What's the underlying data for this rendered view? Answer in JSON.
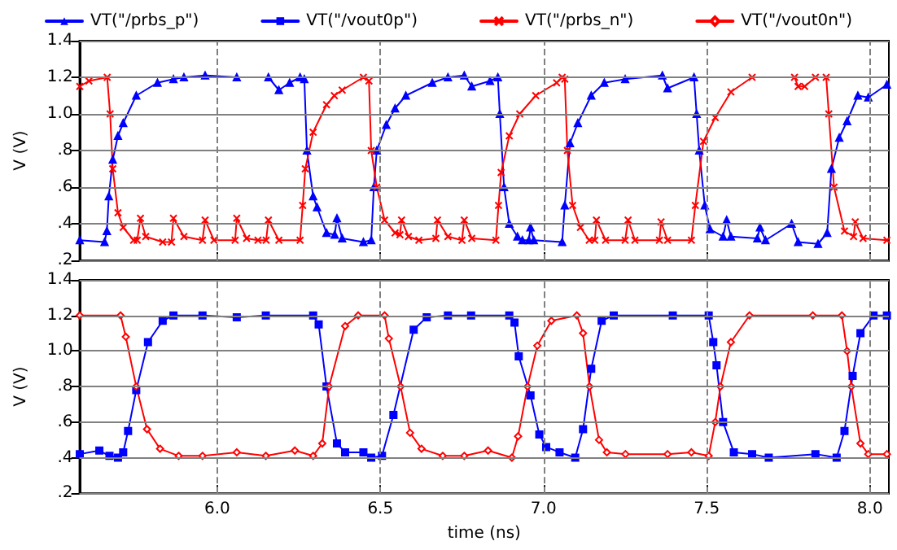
{
  "chart_data": [
    {
      "type": "line",
      "ylabel": "V (V)",
      "legend": "top",
      "grid": true,
      "tick_labels": "y",
      "xlim": [
        5.578,
        8.058
      ],
      "xticks": [
        6,
        6.5,
        7,
        7.5,
        8
      ],
      "ylim": [
        0.2,
        1.4
      ],
      "yticks": [
        {
          "value": 0.2,
          "label": ".2"
        },
        {
          "value": 0.4,
          "label": ".4"
        },
        {
          "value": 0.6,
          "label": ".6"
        },
        {
          "value": 0.8,
          "label": ".8"
        },
        {
          "value": 1.0,
          "label": "1.0"
        },
        {
          "value": 1.2,
          "label": "1.2"
        },
        {
          "value": 1.4,
          "label": "1.4"
        }
      ],
      "series": [
        {
          "name": "VT(\"/prbs_p\")",
          "color": "#0000ff",
          "marker": "triangle",
          "x": [
            5.579,
            5.655,
            5.662,
            5.668,
            5.68,
            5.696,
            5.712,
            5.752,
            5.817,
            5.866,
            5.898,
            5.963,
            6.06,
            6.157,
            6.189,
            6.222,
            6.254,
            6.267,
            6.275,
            6.294,
            6.306,
            6.335,
            6.36,
            6.367,
            6.383,
            6.448,
            6.472,
            6.48,
            6.489,
            6.518,
            6.545,
            6.578,
            6.659,
            6.707,
            6.757,
            6.78,
            6.836,
            6.86,
            6.866,
            6.879,
            6.895,
            6.92,
            6.935,
            6.955,
            6.96,
            6.97,
            7.057,
            7.065,
            7.081,
            7.105,
            7.146,
            7.186,
            7.25,
            7.364,
            7.38,
            7.461,
            7.469,
            7.477,
            7.494,
            7.51,
            7.55,
            7.561,
            7.574,
            7.655,
            7.663,
            7.68,
            7.76,
            7.78,
            7.841,
            7.869,
            7.882,
            7.906,
            7.93,
            7.963,
            7.995,
            8.052
          ],
          "values": [
            0.31,
            0.3,
            0.36,
            0.55,
            0.75,
            0.88,
            0.95,
            1.1,
            1.17,
            1.19,
            1.2,
            1.21,
            1.2,
            1.2,
            1.13,
            1.17,
            1.2,
            1.19,
            0.8,
            0.55,
            0.49,
            0.35,
            0.34,
            0.43,
            0.32,
            0.3,
            0.31,
            0.6,
            0.8,
            0.94,
            1.03,
            1.1,
            1.17,
            1.2,
            1.21,
            1.15,
            1.18,
            1.2,
            1.0,
            0.6,
            0.4,
            0.33,
            0.31,
            0.31,
            0.38,
            0.31,
            0.3,
            0.5,
            0.84,
            0.95,
            1.1,
            1.17,
            1.19,
            1.21,
            1.14,
            1.2,
            1.0,
            0.8,
            0.5,
            0.37,
            0.33,
            0.42,
            0.33,
            0.32,
            0.38,
            0.31,
            0.4,
            0.3,
            0.29,
            0.35,
            0.7,
            0.87,
            0.96,
            1.1,
            1.09,
            1.16
          ]
        },
        {
          "name": "VT(\"/prbs_n\")",
          "color": "#ff0000",
          "marker": "cross",
          "x": [
            5.579,
            5.607,
            5.663,
            5.672,
            5.68,
            5.696,
            5.712,
            5.744,
            5.755,
            5.765,
            5.781,
            5.833,
            5.86,
            5.866,
            5.898,
            5.955,
            5.963,
            5.99,
            6.055,
            6.06,
            6.09,
            6.125,
            6.15,
            6.157,
            6.189,
            6.254,
            6.262,
            6.27,
            6.294,
            6.335,
            6.359,
            6.383,
            6.448,
            6.465,
            6.472,
            6.489,
            6.513,
            6.545,
            6.56,
            6.565,
            6.586,
            6.618,
            6.67,
            6.675,
            6.707,
            6.75,
            6.757,
            6.78,
            6.854,
            6.862,
            6.87,
            6.895,
            6.927,
            6.976,
            7.04,
            7.057,
            7.065,
            7.073,
            7.089,
            7.113,
            7.14,
            7.157,
            7.162,
            7.19,
            7.25,
            7.259,
            7.28,
            7.355,
            7.36,
            7.38,
            7.453,
            7.465,
            7.49,
            7.526,
            7.574,
            7.639,
            7.769,
            7.78,
            7.8,
            7.833,
            7.866,
            7.874,
            7.89,
            7.922,
            7.95,
            7.955,
            7.979,
            8.052
          ],
          "values": [
            1.15,
            1.18,
            1.2,
            1.0,
            0.7,
            0.46,
            0.38,
            0.31,
            0.31,
            0.43,
            0.33,
            0.3,
            0.3,
            0.43,
            0.33,
            0.31,
            0.42,
            0.31,
            0.31,
            0.43,
            0.32,
            0.31,
            0.31,
            0.42,
            0.31,
            0.31,
            0.5,
            0.7,
            0.9,
            1.05,
            1.1,
            1.13,
            1.2,
            1.18,
            0.8,
            0.6,
            0.42,
            0.35,
            0.34,
            0.42,
            0.33,
            0.31,
            0.32,
            0.42,
            0.33,
            0.31,
            0.42,
            0.32,
            0.31,
            0.5,
            0.68,
            0.88,
            1.0,
            1.1,
            1.17,
            1.2,
            1.19,
            0.8,
            0.5,
            0.38,
            0.31,
            0.31,
            0.42,
            0.31,
            0.31,
            0.42,
            0.31,
            0.31,
            0.41,
            0.31,
            0.31,
            0.5,
            0.85,
            0.98,
            1.12,
            1.2,
            1.2,
            1.15,
            1.15,
            1.2,
            1.2,
            1.0,
            0.6,
            0.36,
            0.33,
            0.41,
            0.32,
            0.31
          ]
        }
      ]
    },
    {
      "type": "line",
      "ylabel": "V (V)",
      "xlabel": "time (ns)",
      "grid": true,
      "xlim": [
        5.578,
        8.058
      ],
      "xticks": [
        {
          "value": 6,
          "label": "6.0"
        },
        6.5,
        {
          "value": 7,
          "label": "7.0"
        },
        7.5,
        {
          "value": 8,
          "label": "8.0"
        }
      ],
      "ylim": [
        0.2,
        1.4
      ],
      "yticks": [
        {
          "value": 0.2,
          "label": ".2"
        },
        {
          "value": 0.4,
          "label": ".4"
        },
        {
          "value": 0.6,
          "label": ".6"
        },
        {
          "value": 0.8,
          "label": ".8"
        },
        {
          "value": 1.0,
          "label": "1.0"
        },
        {
          "value": 1.2,
          "label": "1.2"
        },
        {
          "value": 1.4,
          "label": "1.4"
        }
      ],
      "series": [
        {
          "name": "VT(\"/vout0p\")",
          "color": "#0000ff",
          "marker": "square",
          "x": [
            5.579,
            5.639,
            5.67,
            5.696,
            5.712,
            5.727,
            5.752,
            5.788,
            5.833,
            5.866,
            5.955,
            6.06,
            6.149,
            6.294,
            6.311,
            6.335,
            6.367,
            6.392,
            6.448,
            6.472,
            6.505,
            6.54,
            6.602,
            6.642,
            6.707,
            6.778,
            6.895,
            6.911,
            6.924,
            6.96,
            6.987,
            7.008,
            7.049,
            7.097,
            7.121,
            7.146,
            7.178,
            7.215,
            7.396,
            7.506,
            7.52,
            7.53,
            7.55,
            7.583,
            7.639,
            7.69,
            7.833,
            7.898,
            7.922,
            7.947,
            7.971,
            8.011,
            8.052
          ],
          "values": [
            0.42,
            0.44,
            0.41,
            0.4,
            0.43,
            0.55,
            0.78,
            1.05,
            1.17,
            1.2,
            1.2,
            1.19,
            1.2,
            1.2,
            1.15,
            0.8,
            0.48,
            0.43,
            0.43,
            0.4,
            0.41,
            0.64,
            1.12,
            1.19,
            1.2,
            1.2,
            1.2,
            1.16,
            0.97,
            0.75,
            0.53,
            0.46,
            0.43,
            0.4,
            0.56,
            0.9,
            1.17,
            1.2,
            1.2,
            1.2,
            1.05,
            0.92,
            0.6,
            0.43,
            0.42,
            0.4,
            0.42,
            0.4,
            0.55,
            0.86,
            1.1,
            1.2,
            1.2
          ]
        },
        {
          "name": "VT(\"/vout0n\")",
          "color": "#ff0000",
          "marker": "diamond",
          "x": [
            5.579,
            5.704,
            5.72,
            5.752,
            5.785,
            5.825,
            5.882,
            5.955,
            6.06,
            6.149,
            6.238,
            6.294,
            6.322,
            6.343,
            6.392,
            6.432,
            6.513,
            6.526,
            6.562,
            6.591,
            6.626,
            6.691,
            6.757,
            6.83,
            6.903,
            6.922,
            6.951,
            6.981,
            7.024,
            7.102,
            7.121,
            7.141,
            7.17,
            7.194,
            7.251,
            7.38,
            7.453,
            7.506,
            7.526,
            7.542,
            7.574,
            7.631,
            7.825,
            7.914,
            7.93,
            7.943,
            7.971,
            7.995,
            8.052
          ],
          "values": [
            1.2,
            1.2,
            1.08,
            0.8,
            0.56,
            0.45,
            0.41,
            0.41,
            0.43,
            0.41,
            0.44,
            0.41,
            0.48,
            0.8,
            1.14,
            1.2,
            1.2,
            1.07,
            0.8,
            0.54,
            0.45,
            0.41,
            0.41,
            0.44,
            0.4,
            0.52,
            0.8,
            1.03,
            1.17,
            1.2,
            1.1,
            0.8,
            0.5,
            0.43,
            0.42,
            0.42,
            0.43,
            0.41,
            0.6,
            0.8,
            1.05,
            1.2,
            1.2,
            1.2,
            1.0,
            0.8,
            0.48,
            0.42,
            0.42
          ]
        }
      ]
    }
  ]
}
